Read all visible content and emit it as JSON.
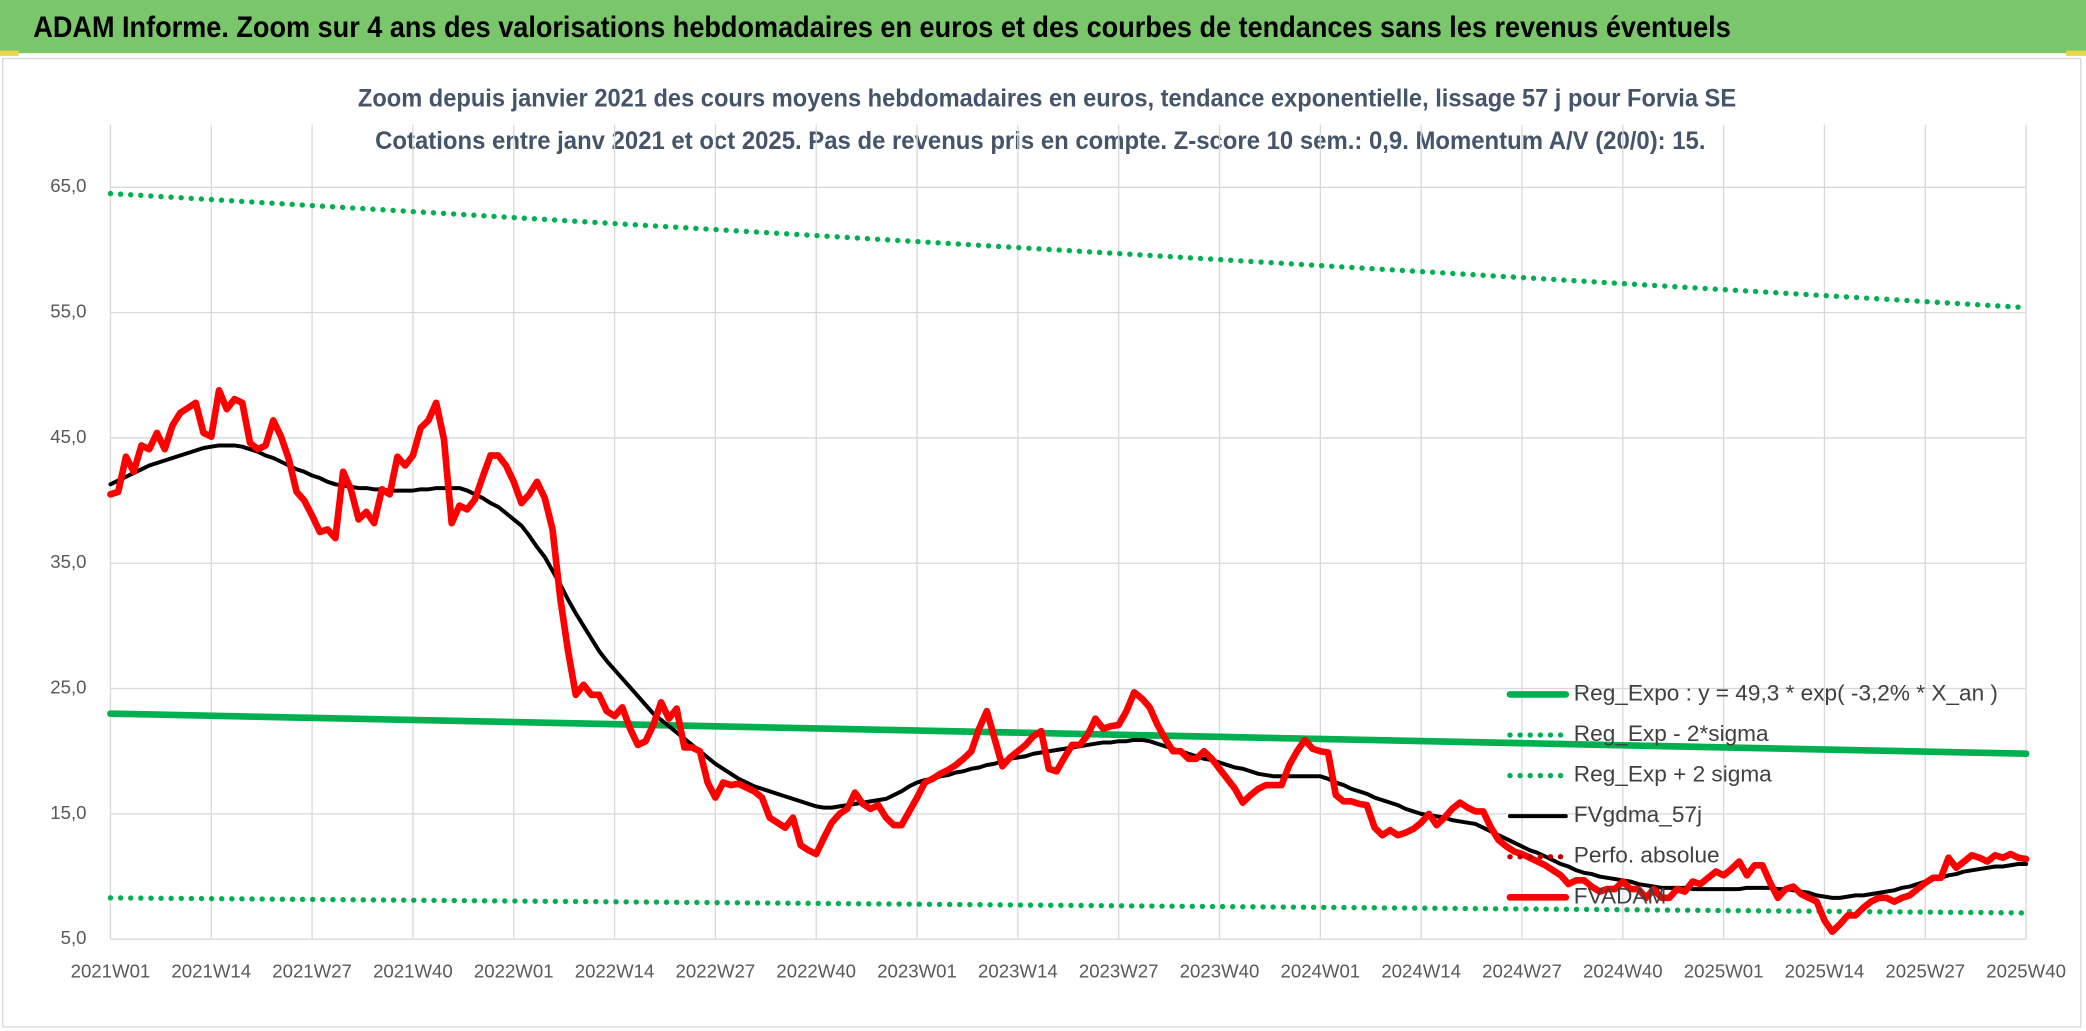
{
  "header": {
    "title": "ADAM Informe. Zoom sur 4 ans des valorisations hebdomadaires en euros et des courbes de tendances sans les revenus éventuels"
  },
  "chart_data": {
    "type": "line",
    "title": "Zoom depuis janvier 2021 des cours moyens hebdomadaires en euros, tendance exponentielle, lissage 57 j pour Forvia SE",
    "subtitle": "Cotations entre janv 2021 et oct 2025. Pas de revenus pris en compte. Z-score 10 sem.: 0,9. Momentum A/V (20/0): 15.",
    "categories": [
      "2021W01",
      null,
      null,
      null,
      null,
      null,
      null,
      null,
      null,
      null,
      null,
      null,
      null,
      "2021W14",
      null,
      null,
      null,
      null,
      null,
      null,
      null,
      null,
      null,
      null,
      null,
      null,
      "2021W27",
      null,
      null,
      null,
      null,
      null,
      null,
      null,
      null,
      null,
      null,
      null,
      null,
      "2021W40",
      null,
      null,
      null,
      null,
      null,
      null,
      null,
      null,
      null,
      null,
      null,
      null,
      "2022W01",
      null,
      null,
      null,
      null,
      null,
      null,
      null,
      null,
      null,
      null,
      null,
      null,
      "2022W14",
      null,
      null,
      null,
      null,
      null,
      null,
      null,
      null,
      null,
      null,
      null,
      null,
      "2022W27",
      null,
      null,
      null,
      null,
      null,
      null,
      null,
      null,
      null,
      null,
      null,
      null,
      "2022W40",
      null,
      null,
      null,
      null,
      null,
      null,
      null,
      null,
      null,
      null,
      null,
      null,
      "2023W01",
      null,
      null,
      null,
      null,
      null,
      null,
      null,
      null,
      null,
      null,
      null,
      null,
      "2023W14",
      null,
      null,
      null,
      null,
      null,
      null,
      null,
      null,
      null,
      null,
      null,
      null,
      "2023W27",
      null,
      null,
      null,
      null,
      null,
      null,
      null,
      null,
      null,
      null,
      null,
      null,
      "2023W40",
      null,
      null,
      null,
      null,
      null,
      null,
      null,
      null,
      null,
      null,
      null,
      null,
      "2024W01",
      null,
      null,
      null,
      null,
      null,
      null,
      null,
      null,
      null,
      null,
      null,
      null,
      "2024W14",
      null,
      null,
      null,
      null,
      null,
      null,
      null,
      null,
      null,
      null,
      null,
      null,
      "2024W27",
      null,
      null,
      null,
      null,
      null,
      null,
      null,
      null,
      null,
      null,
      null,
      null,
      "2024W40",
      null,
      null,
      null,
      null,
      null,
      null,
      null,
      null,
      null,
      null,
      null,
      null,
      "2025W01",
      null,
      null,
      null,
      null,
      null,
      null,
      null,
      null,
      null,
      null,
      null,
      null,
      "2025W14",
      null,
      null,
      null,
      null,
      null,
      null,
      null,
      null,
      null,
      null,
      null,
      null,
      "2025W27",
      null,
      null,
      null,
      null,
      null,
      null,
      null,
      null,
      null,
      null,
      null,
      null,
      "2025W40"
    ],
    "ylim": [
      5,
      70
    ],
    "yticks": [
      {
        "value": 5,
        "label": "5,0"
      },
      {
        "value": 15,
        "label": "15,0"
      },
      {
        "value": 25,
        "label": "25,0"
      },
      {
        "value": 35,
        "label": "35,0"
      },
      {
        "value": 45,
        "label": "45,0"
      },
      {
        "value": 55,
        "label": "55,0"
      },
      {
        "value": 65,
        "label": "65,0"
      }
    ],
    "grid": true,
    "legend": "right",
    "series": [
      {
        "name": "Reg_Expo : y = 49,3 * exp( -3,2% *  X_an )",
        "color": "#00b050",
        "style": "solid",
        "x": [
          "2021W01",
          "2025W40"
        ],
        "values": [
          23.0,
          19.8
        ]
      },
      {
        "name": "Reg_Exp - 2*sigma",
        "color": "#00b050",
        "style": "dotted",
        "x": [
          "2021W01",
          "2025W40"
        ],
        "values": [
          8.3,
          7.1
        ]
      },
      {
        "name": "Reg_Exp + 2 sigma",
        "color": "#00b050",
        "style": "dotted",
        "x": [
          "2021W01",
          "2025W40"
        ],
        "values": [
          64.5,
          55.4
        ]
      },
      {
        "name": "FVgdma_57j",
        "color": "#000000",
        "style": "solid",
        "values": [
          41.3,
          41.6,
          41.9,
          42.2,
          42.5,
          42.8,
          43.0,
          43.2,
          43.4,
          43.6,
          43.8,
          44.0,
          44.2,
          44.3,
          44.4,
          44.4,
          44.4,
          44.3,
          44.1,
          43.9,
          43.6,
          43.4,
          43.1,
          42.8,
          42.5,
          42.3,
          42.0,
          41.8,
          41.5,
          41.3,
          41.2,
          41.1,
          41.0,
          41.0,
          40.9,
          40.9,
          40.8,
          40.8,
          40.8,
          40.8,
          40.9,
          40.9,
          41.0,
          41.0,
          41.0,
          41.0,
          40.8,
          40.5,
          40.2,
          39.8,
          39.5,
          39.0,
          38.5,
          38.0,
          37.2,
          36.3,
          35.5,
          34.4,
          33.3,
          32.1,
          31.0,
          30.0,
          29.0,
          28.0,
          27.2,
          26.5,
          25.8,
          25.1,
          24.4,
          23.7,
          23.0,
          22.5,
          22.0,
          21.5,
          21.0,
          20.5,
          20.0,
          19.5,
          19.0,
          18.6,
          18.2,
          17.8,
          17.5,
          17.2,
          17.0,
          16.8,
          16.6,
          16.4,
          16.2,
          16.0,
          15.8,
          15.6,
          15.5,
          15.5,
          15.6,
          15.7,
          15.8,
          15.9,
          16.0,
          16.1,
          16.2,
          16.5,
          16.8,
          17.2,
          17.5,
          17.7,
          17.8,
          18.0,
          18.1,
          18.3,
          18.4,
          18.6,
          18.7,
          18.9,
          19.0,
          19.2,
          19.4,
          19.5,
          19.6,
          19.8,
          19.9,
          20.0,
          20.1,
          20.2,
          20.3,
          20.4,
          20.5,
          20.6,
          20.7,
          20.7,
          20.8,
          20.8,
          20.9,
          20.9,
          20.8,
          20.6,
          20.4,
          20.2,
          20.0,
          19.8,
          19.6,
          19.4,
          19.3,
          19.1,
          18.9,
          18.7,
          18.6,
          18.4,
          18.2,
          18.1,
          18.0,
          18.0,
          18.0,
          18.0,
          18.0,
          18.0,
          18.0,
          17.8,
          17.5,
          17.3,
          17.0,
          16.8,
          16.6,
          16.3,
          16.1,
          15.9,
          15.7,
          15.4,
          15.2,
          15.0,
          14.9,
          14.8,
          14.7,
          14.5,
          14.4,
          14.3,
          14.2,
          13.9,
          13.6,
          13.3,
          13.0,
          12.7,
          12.4,
          12.1,
          11.9,
          11.6,
          11.3,
          11.0,
          10.8,
          10.5,
          10.3,
          10.2,
          10.0,
          9.9,
          9.8,
          9.7,
          9.6,
          9.4,
          9.3,
          9.2,
          9.1,
          9.1,
          9.1,
          9.1,
          9.0,
          9.0,
          9.0,
          9.0,
          9.0,
          9.0,
          9.0,
          9.1,
          9.1,
          9.1,
          9.1,
          9.0,
          9.0,
          8.9,
          8.8,
          8.7,
          8.5,
          8.4,
          8.3,
          8.3,
          8.4,
          8.5,
          8.5,
          8.6,
          8.7,
          8.8,
          8.9,
          9.1,
          9.2,
          9.4,
          9.6,
          9.8,
          9.9,
          10.1,
          10.2,
          10.4,
          10.5,
          10.6,
          10.7,
          10.8,
          10.8,
          10.9,
          11.0,
          11.0
        ]
      },
      {
        "name": "Perfo. absolue",
        "color": "#c00000",
        "style": "dotted",
        "x": [],
        "values": []
      },
      {
        "name": "FVADAM",
        "color": "#ff0000",
        "style": "solid",
        "values": [
          40.5,
          40.7,
          43.5,
          42.3,
          44.4,
          44.1,
          45.4,
          44.1,
          46.0,
          47.0,
          47.4,
          47.8,
          45.4,
          45.1,
          48.8,
          47.3,
          48.1,
          47.8,
          44.6,
          44.1,
          44.4,
          46.4,
          45.1,
          43.3,
          40.7,
          40.0,
          38.8,
          37.5,
          37.7,
          37.0,
          42.3,
          40.9,
          38.5,
          39.1,
          38.2,
          40.9,
          40.5,
          43.5,
          42.8,
          43.6,
          45.8,
          46.4,
          47.8,
          44.9,
          38.2,
          39.6,
          39.3,
          40.1,
          41.9,
          43.6,
          43.6,
          42.8,
          41.5,
          39.8,
          40.5,
          41.5,
          40.2,
          37.7,
          32.2,
          28.0,
          24.5,
          25.3,
          24.5,
          24.5,
          23.2,
          22.8,
          23.5,
          21.8,
          20.5,
          20.8,
          22.1,
          23.9,
          22.6,
          23.4,
          20.3,
          20.3,
          20.0,
          17.5,
          16.3,
          17.5,
          17.3,
          17.4,
          17.1,
          16.8,
          16.3,
          14.7,
          14.3,
          13.9,
          14.7,
          12.5,
          12.1,
          11.8,
          13.1,
          14.3,
          15.0,
          15.4,
          16.7,
          15.8,
          15.4,
          15.7,
          14.7,
          14.1,
          14.1,
          15.2,
          16.3,
          17.5,
          17.8,
          18.2,
          18.5,
          18.9,
          19.4,
          20.0,
          21.8,
          23.2,
          21.0,
          18.8,
          19.5,
          20.0,
          20.5,
          21.2,
          21.6,
          18.6,
          18.4,
          19.5,
          20.5,
          20.5,
          21.3,
          22.6,
          21.8,
          22.0,
          22.1,
          23.2,
          24.7,
          24.2,
          23.5,
          22.1,
          21.0,
          20.0,
          20.0,
          19.4,
          19.4,
          20.0,
          19.4,
          18.6,
          17.8,
          17.0,
          15.9,
          16.5,
          17.0,
          17.3,
          17.3,
          17.3,
          18.9,
          20.0,
          20.9,
          20.2,
          20.0,
          19.9,
          16.5,
          16.0,
          16.0,
          15.8,
          15.7,
          13.9,
          13.3,
          13.7,
          13.3,
          13.5,
          13.8,
          14.3,
          15.0,
          14.1,
          14.7,
          15.4,
          15.9,
          15.5,
          15.2,
          15.2,
          13.9,
          12.9,
          12.4,
          12.0,
          11.8,
          11.5,
          11.2,
          10.9,
          10.5,
          10.1,
          9.4,
          9.7,
          9.7,
          9.2,
          8.8,
          9.0,
          9.0,
          9.6,
          9.0,
          9.0,
          8.3,
          9.0,
          8.3,
          8.3,
          9.0,
          8.8,
          9.6,
          9.4,
          9.9,
          10.4,
          10.1,
          10.6,
          11.2,
          10.1,
          10.9,
          10.9,
          9.5,
          8.3,
          9.0,
          9.2,
          8.6,
          8.3,
          8.0,
          6.5,
          5.6,
          6.2,
          6.9,
          6.9,
          7.5,
          8.0,
          8.3,
          8.3,
          8.0,
          8.3,
          8.5,
          9.0,
          9.5,
          9.9,
          9.9,
          11.5,
          10.7,
          11.2,
          11.7,
          11.5,
          11.2,
          11.7,
          11.5,
          11.8,
          11.5,
          11.4
        ]
      }
    ]
  }
}
